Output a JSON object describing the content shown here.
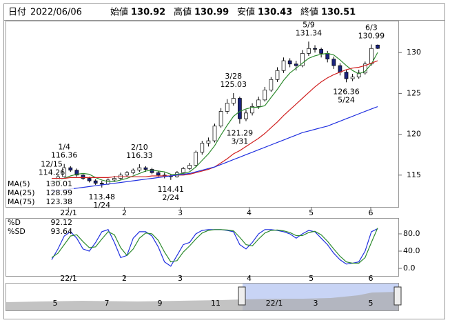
{
  "header": {
    "date_label": "日付",
    "date": "2022/06/06",
    "fields": [
      {
        "label": "始値",
        "value": 130.92,
        "color": "#000000"
      },
      {
        "label": "高値",
        "value": 130.99,
        "color": "#e00000"
      },
      {
        "label": "安値",
        "value": 130.43,
        "color": "#008000"
      },
      {
        "label": "終値",
        "value": 130.51,
        "color": "#000000"
      }
    ]
  },
  "chart_data": [
    {
      "type": "candlestick",
      "up_color": "#ffffff",
      "down_color": "#1a237e",
      "open": [
        114.0,
        114.2,
        114.8,
        115.9,
        115.6,
        115.0,
        114.6,
        114.3,
        114.0,
        113.9,
        114.4,
        114.6,
        115.0,
        115.3,
        115.6,
        115.9,
        115.7,
        115.3,
        115.0,
        114.9,
        114.8,
        115.3,
        115.8,
        116.2,
        117.8,
        118.9,
        119.2,
        121.0,
        122.8,
        123.8,
        124.4,
        121.9,
        122.6,
        123.4,
        124.2,
        125.4,
        126.7,
        127.8,
        129.0,
        128.6,
        128.4,
        129.9,
        130.5,
        130.4,
        129.9,
        129.2,
        128.4,
        127.6,
        126.8,
        127.0,
        127.5,
        128.6,
        130.92
      ],
      "high": [
        114.26,
        115.0,
        116.36,
        116.1,
        115.8,
        115.2,
        114.8,
        114.5,
        114.3,
        114.6,
        114.9,
        115.3,
        115.5,
        115.8,
        116.33,
        116.1,
        115.9,
        115.5,
        115.3,
        115.1,
        115.5,
        116.0,
        116.5,
        118.0,
        119.2,
        119.6,
        121.3,
        123.2,
        124.3,
        125.03,
        124.6,
        123.0,
        123.8,
        124.6,
        125.8,
        127.0,
        128.2,
        129.4,
        129.3,
        129.0,
        130.3,
        131.34,
        130.9,
        130.6,
        130.2,
        129.5,
        128.7,
        127.9,
        127.4,
        127.9,
        128.9,
        130.99,
        130.99
      ],
      "low": [
        113.8,
        114.1,
        114.7,
        115.4,
        114.8,
        114.4,
        114.1,
        113.8,
        113.48,
        113.8,
        114.2,
        114.4,
        114.8,
        115.1,
        115.4,
        115.4,
        115.1,
        114.8,
        114.6,
        114.41,
        114.7,
        115.1,
        115.6,
        116.0,
        117.5,
        118.5,
        119.0,
        120.8,
        122.5,
        123.5,
        121.29,
        121.6,
        122.3,
        123.1,
        124.0,
        125.2,
        126.4,
        127.5,
        128.2,
        127.8,
        128.2,
        129.6,
        130.0,
        129.4,
        128.8,
        128.0,
        127.2,
        126.36,
        126.5,
        126.8,
        127.3,
        128.4,
        130.43
      ],
      "close": [
        114.2,
        114.8,
        115.9,
        115.6,
        115.0,
        114.6,
        114.3,
        114.0,
        113.9,
        114.4,
        114.6,
        115.0,
        115.3,
        115.6,
        115.9,
        115.7,
        115.3,
        115.0,
        114.9,
        114.8,
        115.3,
        115.8,
        116.2,
        117.8,
        118.9,
        119.2,
        121.0,
        122.8,
        123.8,
        124.4,
        121.9,
        122.6,
        123.4,
        124.2,
        125.4,
        126.7,
        127.8,
        129.0,
        128.6,
        128.4,
        129.9,
        130.5,
        130.4,
        129.9,
        129.2,
        128.4,
        127.6,
        126.8,
        127.0,
        127.5,
        128.6,
        130.5,
        130.51
      ],
      "series": [
        {
          "name": "MA(5)",
          "color": "#2e8b2e",
          "values": [
            114.0,
            114.2,
            114.6,
            114.9,
            115.1,
            115.2,
            115.1,
            114.7,
            114.4,
            114.2,
            114.2,
            114.4,
            114.6,
            114.9,
            115.2,
            115.5,
            115.6,
            115.5,
            115.4,
            115.1,
            115.1,
            115.2,
            115.4,
            116.0,
            116.8,
            117.6,
            118.6,
            119.9,
            121.1,
            122.2,
            122.8,
            123.1,
            123.3,
            123.3,
            123.5,
            124.5,
            125.5,
            126.6,
            127.5,
            128.1,
            128.7,
            129.3,
            129.6,
            129.8,
            129.9,
            129.7,
            129.1,
            128.4,
            127.8,
            127.4,
            127.7,
            128.6,
            130.01
          ]
        },
        {
          "name": "MA(25)",
          "color": "#d02020",
          "values": [
            114.6,
            114.6,
            114.6,
            114.7,
            114.7,
            114.7,
            114.7,
            114.7,
            114.7,
            114.7,
            114.8,
            114.8,
            114.8,
            114.8,
            114.8,
            114.8,
            114.9,
            114.9,
            114.9,
            114.9,
            115.0,
            115.0,
            115.1,
            115.3,
            115.5,
            115.7,
            116.0,
            116.5,
            117.0,
            117.6,
            118.0,
            118.5,
            119.0,
            119.5,
            120.1,
            120.8,
            121.5,
            122.3,
            123.0,
            123.7,
            124.4,
            125.1,
            125.8,
            126.4,
            126.9,
            127.3,
            127.6,
            127.9,
            128.1,
            128.2,
            128.4,
            128.7,
            128.99
          ]
        },
        {
          "name": "MA(75)",
          "color": "#2030e0",
          "values": [
            113.0,
            113.1,
            113.2,
            113.3,
            113.4,
            113.5,
            113.6,
            113.7,
            113.8,
            113.9,
            114.0,
            114.1,
            114.2,
            114.3,
            114.4,
            114.5,
            114.6,
            114.7,
            114.8,
            114.9,
            115.0,
            115.1,
            115.2,
            115.4,
            115.6,
            115.8,
            116.0,
            116.3,
            116.6,
            116.9,
            117.2,
            117.5,
            117.8,
            118.1,
            118.4,
            118.7,
            119.0,
            119.3,
            119.6,
            119.9,
            120.2,
            120.4,
            120.6,
            120.8,
            121.0,
            121.3,
            121.6,
            121.9,
            122.2,
            122.5,
            122.8,
            123.1,
            123.38
          ]
        }
      ],
      "ylim": [
        111.1,
        133.9
      ],
      "yticks": [
        115,
        120,
        125,
        130
      ],
      "xticks": [
        {
          "value": 2.7,
          "label": "22/1"
        },
        {
          "value": 11.6,
          "label": "2"
        },
        {
          "value": 20.5,
          "label": "3"
        },
        {
          "value": 31.5,
          "label": "4"
        },
        {
          "value": 41.4,
          "label": "5"
        },
        {
          "value": 50.9,
          "label": "6"
        }
      ],
      "annotations": [
        {
          "date": "12/15",
          "price": 114.26,
          "x": 0,
          "side": "above"
        },
        {
          "date": "1/4",
          "price": 116.36,
          "x": 2,
          "side": "above"
        },
        {
          "date": "1/24",
          "price": 113.48,
          "x": 8,
          "side": "below"
        },
        {
          "date": "2/10",
          "price": 116.33,
          "x": 14,
          "side": "above"
        },
        {
          "date": "2/24",
          "price": 114.41,
          "x": 19,
          "side": "below"
        },
        {
          "date": "3/28",
          "price": 125.03,
          "x": 29,
          "side": "above"
        },
        {
          "date": "3/31",
          "price": 121.29,
          "x": 30,
          "side": "below"
        },
        {
          "date": "5/9",
          "price": 131.34,
          "x": 41,
          "side": "above"
        },
        {
          "date": "5/24",
          "price": 126.36,
          "x": 47,
          "side": "below"
        },
        {
          "date": "6/3",
          "price": 130.99,
          "x": 51,
          "side": "above"
        }
      ]
    },
    {
      "type": "line",
      "series": [
        {
          "name": "%D",
          "color": "#2030e0",
          "values": [
            20,
            45,
            75,
            85,
            70,
            45,
            40,
            60,
            85,
            90,
            60,
            25,
            30,
            70,
            85,
            85,
            75,
            50,
            15,
            5,
            30,
            55,
            60,
            80,
            88,
            90,
            90,
            90,
            88,
            85,
            55,
            45,
            60,
            80,
            90,
            90,
            88,
            85,
            80,
            70,
            80,
            88,
            85,
            70,
            55,
            35,
            20,
            10,
            12,
            15,
            40,
            85,
            92.12
          ]
        },
        {
          "name": "%SD",
          "color": "#2e8b2e",
          "values": [
            25,
            35,
            55,
            75,
            78,
            62,
            48,
            50,
            68,
            85,
            78,
            48,
            30,
            45,
            70,
            82,
            80,
            65,
            38,
            15,
            18,
            38,
            52,
            68,
            82,
            88,
            90,
            90,
            89,
            87,
            72,
            55,
            52,
            68,
            82,
            88,
            89,
            87,
            83,
            76,
            76,
            83,
            86,
            78,
            63,
            45,
            28,
            15,
            12,
            12,
            25,
            60,
            93.64
          ]
        }
      ],
      "ylim": [
        -17.6,
        116.8
      ],
      "yticks": [
        {
          "value": 0,
          "label": "0.0"
        },
        {
          "value": 40,
          "label": "40.0"
        },
        {
          "value": 80,
          "label": "80.0"
        }
      ],
      "xticks": [
        {
          "value": 2.7,
          "label": "22/1"
        },
        {
          "value": 11.6,
          "label": "2"
        },
        {
          "value": 20.5,
          "label": "3"
        },
        {
          "value": 31.5,
          "label": "4"
        },
        {
          "value": 41.4,
          "label": "5"
        },
        {
          "value": 50.9,
          "label": "6"
        }
      ]
    }
  ],
  "navigator": {
    "labels": [
      "5",
      "7",
      "9",
      "11",
      "22/1",
      "3",
      "5"
    ]
  }
}
